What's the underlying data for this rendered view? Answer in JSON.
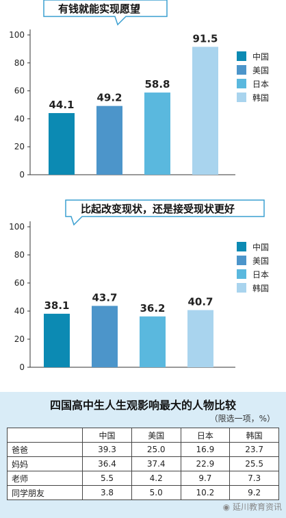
{
  "chart_data": [
    {
      "type": "bar",
      "title": "有钱就能实现愿望",
      "categories": [
        "中国",
        "美国",
        "日本",
        "韩国"
      ],
      "values": [
        44.1,
        49.2,
        58.8,
        91.5
      ],
      "ylim": [
        0,
        100
      ],
      "yticks": [
        0,
        20,
        40,
        60,
        80,
        100
      ],
      "colors": [
        "#0c8ab3",
        "#4c95ca",
        "#5ab8de",
        "#a9d4ee"
      ],
      "legend": [
        "中国",
        "美国",
        "日本",
        "韩国"
      ],
      "legend_position": "right"
    },
    {
      "type": "bar",
      "title": "比起改变现状，还是接受现状更好",
      "categories": [
        "中国",
        "美国",
        "日本",
        "韩国"
      ],
      "values": [
        38.1,
        43.7,
        36.2,
        40.7
      ],
      "ylim": [
        0,
        100
      ],
      "yticks": [
        0,
        20,
        40,
        60,
        80,
        100
      ],
      "colors": [
        "#0c8ab3",
        "#4c95ca",
        "#5ab8de",
        "#a9d4ee"
      ],
      "legend": [
        "中国",
        "美国",
        "日本",
        "韩国"
      ],
      "legend_position": "right"
    },
    {
      "type": "table",
      "title": "四国高中生人生观影响最大的人物比较",
      "note": "（限选一项，%）",
      "columns": [
        "",
        "中国",
        "美国",
        "日本",
        "韩国"
      ],
      "rows": [
        [
          "爸爸",
          "39.3",
          "25.0",
          "16.9",
          "23.7"
        ],
        [
          "妈妈",
          "36.4",
          "37.4",
          "22.9",
          "25.5"
        ],
        [
          "老师",
          "5.5",
          "4.2",
          "9.7",
          "7.3"
        ],
        [
          "同学朋友",
          "3.8",
          "5.0",
          "10.2",
          "9.2"
        ]
      ]
    }
  ],
  "watermark": "延川教育资讯",
  "watermark_icon": "wechat-icon"
}
